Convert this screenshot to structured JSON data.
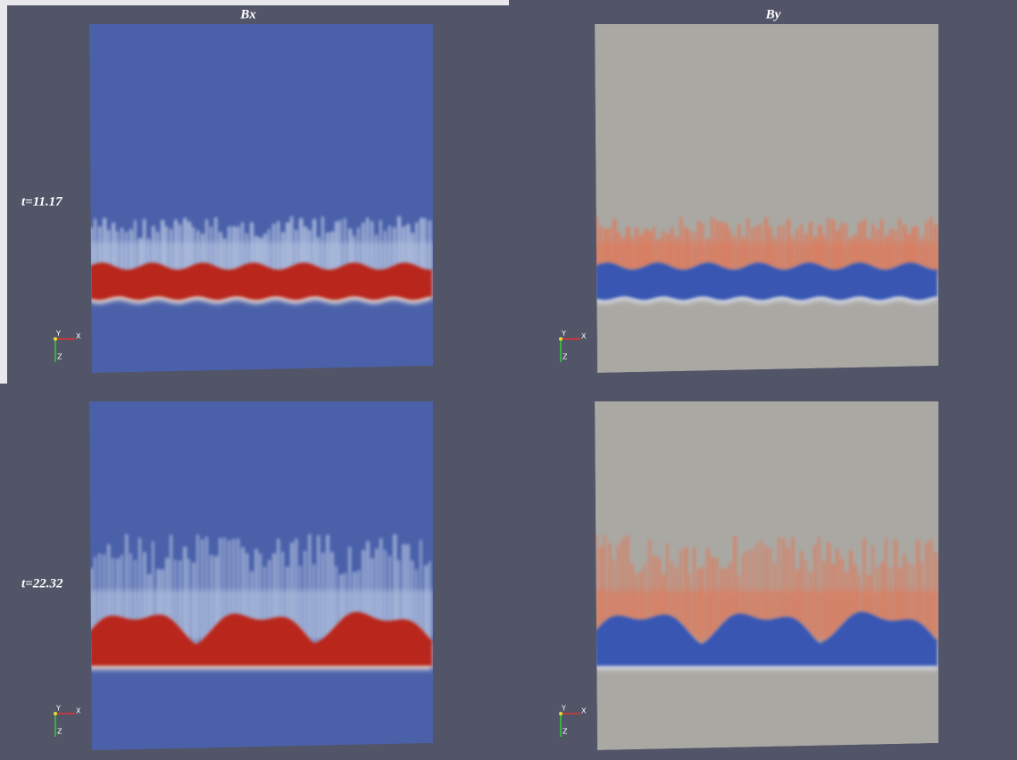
{
  "header": {
    "columns": [
      "Bx",
      "By"
    ]
  },
  "rows": [
    {
      "time": "t=11.17"
    },
    {
      "time": "t=22.32"
    }
  ],
  "orientation_axes": {
    "y": "Y",
    "x": "X",
    "z": "Z"
  }
}
